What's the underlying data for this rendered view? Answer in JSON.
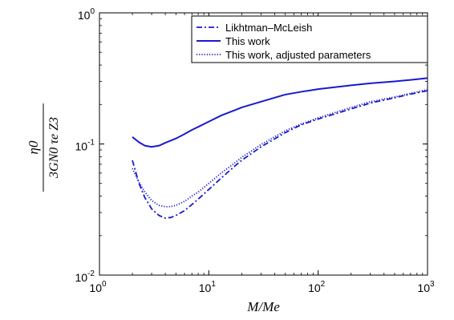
{
  "chart_data": {
    "type": "line",
    "xscale": "log",
    "yscale": "log",
    "xlim": [
      1,
      1000
    ],
    "ylim": [
      0.01,
      1
    ],
    "grid": false,
    "legend_position": "top-right",
    "xlabel": "M/Me",
    "ylabel": {
      "numerator": "η0",
      "denominator": "3GN0 τe Z3"
    },
    "x_ticks": [
      {
        "base": "10",
        "exp": "0"
      },
      {
        "base": "10",
        "exp": "1"
      },
      {
        "base": "10",
        "exp": "2"
      },
      {
        "base": "10",
        "exp": "3"
      }
    ],
    "y_ticks": [
      {
        "base": "10",
        "exp": "-2"
      },
      {
        "base": "10",
        "exp": "-1"
      },
      {
        "base": "10",
        "exp": "0"
      }
    ],
    "series": [
      {
        "name": "Likhtman–McLeish",
        "style": "dashdot",
        "color": "#1a1acc",
        "x": [
          2,
          2.3,
          2.6,
          3,
          3.5,
          4,
          4.5,
          5,
          6,
          7,
          8,
          10,
          13,
          17,
          20,
          30,
          50,
          70,
          100,
          200,
          300,
          500,
          700,
          1000
        ],
        "y": [
          0.075,
          0.05,
          0.039,
          0.032,
          0.0285,
          0.0272,
          0.0275,
          0.0285,
          0.031,
          0.0345,
          0.038,
          0.045,
          0.055,
          0.067,
          0.075,
          0.095,
          0.122,
          0.14,
          0.155,
          0.185,
          0.205,
          0.225,
          0.24,
          0.255
        ]
      },
      {
        "name": "This work",
        "style": "solid",
        "color": "#1a1acc",
        "x": [
          2,
          2.3,
          2.6,
          3,
          3.5,
          4,
          5,
          6,
          7,
          8,
          10,
          13,
          17,
          20,
          30,
          50,
          70,
          100,
          200,
          300,
          500,
          700,
          1000
        ],
        "y": [
          0.113,
          0.103,
          0.097,
          0.095,
          0.097,
          0.102,
          0.11,
          0.119,
          0.128,
          0.135,
          0.148,
          0.165,
          0.18,
          0.19,
          0.21,
          0.238,
          0.25,
          0.262,
          0.28,
          0.29,
          0.3,
          0.308,
          0.318
        ]
      },
      {
        "name": "This work, adjusted parameters",
        "style": "dotted",
        "color": "#1a1acc",
        "x": [
          2,
          2.3,
          2.6,
          3,
          3.5,
          4,
          4.5,
          5,
          6,
          7,
          8,
          10,
          13,
          17,
          20,
          30,
          50,
          70,
          100,
          200,
          300,
          500,
          700,
          1000
        ],
        "y": [
          0.065,
          0.051,
          0.043,
          0.037,
          0.034,
          0.0332,
          0.0333,
          0.034,
          0.0365,
          0.04,
          0.043,
          0.05,
          0.06,
          0.071,
          0.079,
          0.099,
          0.126,
          0.142,
          0.158,
          0.19,
          0.21,
          0.228,
          0.243,
          0.26
        ]
      }
    ]
  }
}
